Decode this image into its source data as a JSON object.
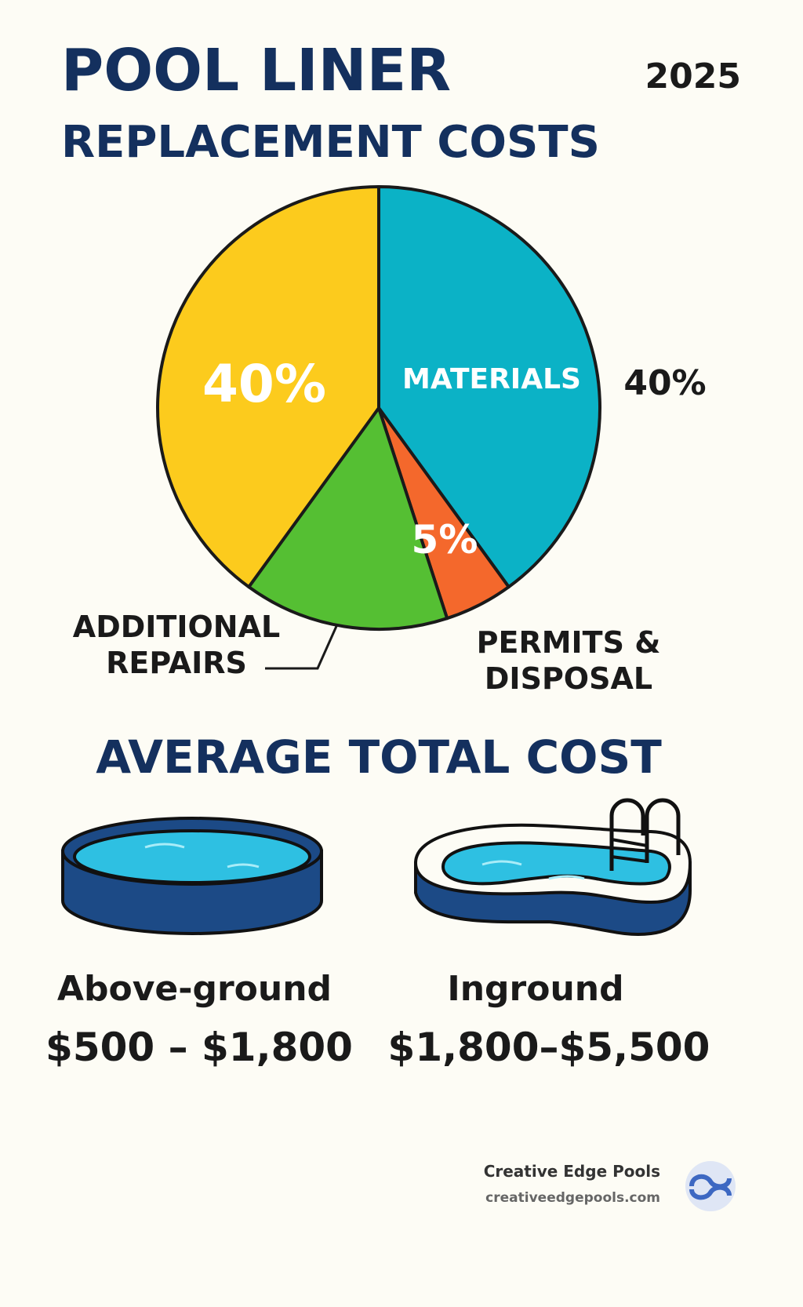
{
  "chart_data": {
    "type": "pie",
    "title": "POOL LINER",
    "subtitle": "REPLACEMENT COSTS",
    "year": "2025",
    "categories": [
      "MATERIALS",
      "PERMITS & DISPOSAL",
      "ADDITIONAL REPAIRS",
      null
    ],
    "values": [
      40,
      5,
      15,
      40
    ],
    "value_labels": [
      "40%",
      "5%",
      null,
      "40%"
    ],
    "colors": [
      "#0bb2c6",
      "#f4682c",
      "#55bf33",
      "#fccb1d"
    ]
  },
  "cost_section": {
    "title": "AVERAGE TOTAL COST",
    "items": [
      {
        "label": "Above-ground",
        "range": "$500 – $1,800"
      },
      {
        "label": "Inground",
        "range": "$1,800–$5,500"
      }
    ]
  },
  "footer": {
    "brand": "Creative Edge Pools",
    "url": "creativeedgepools.com"
  }
}
